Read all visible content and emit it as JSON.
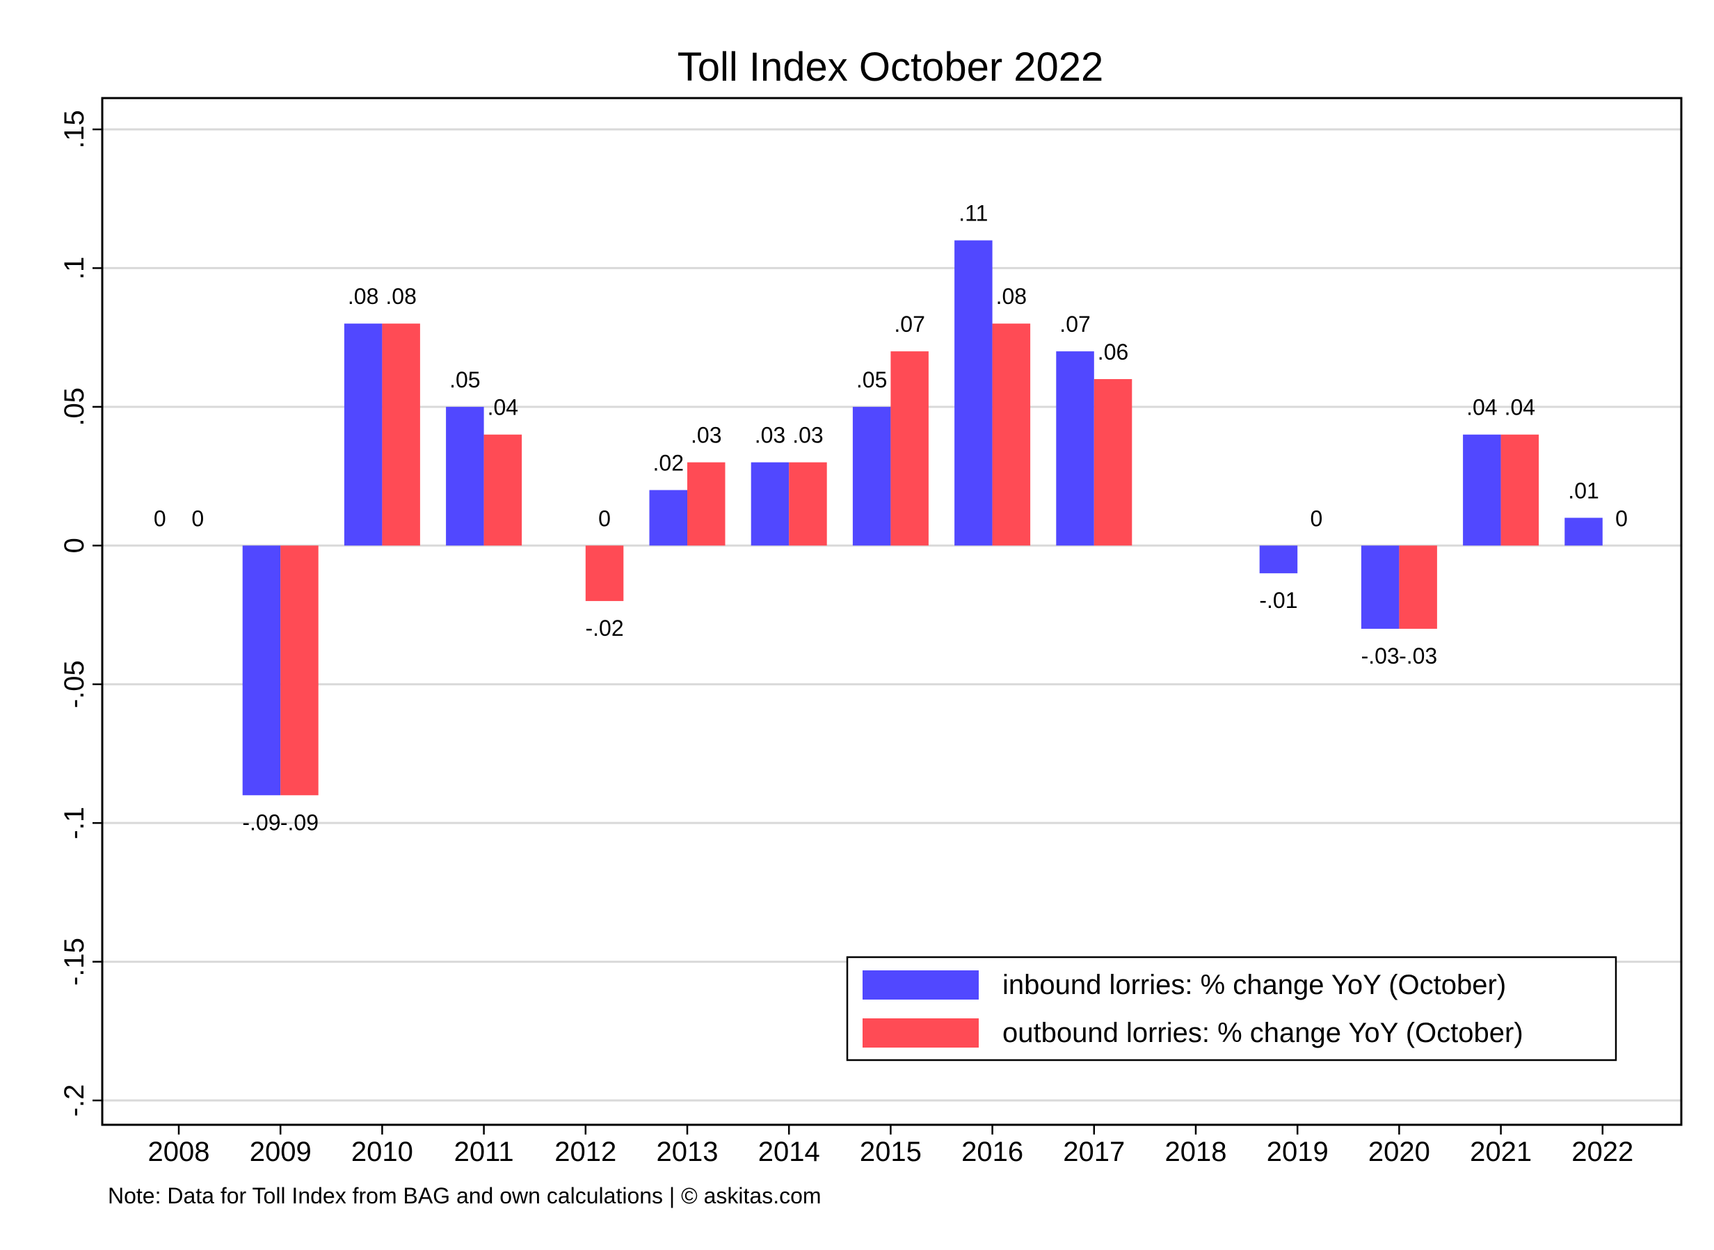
{
  "chart_data": {
    "type": "bar",
    "title": "Toll Index October 2022",
    "note": "Note: Data for Toll Index from BAG and own calculations | © askitas.com",
    "categories": [
      "2008",
      "2009",
      "2010",
      "2011",
      "2012",
      "2013",
      "2014",
      "2015",
      "2016",
      "2017",
      "2018",
      "2019",
      "2020",
      "2021",
      "2022"
    ],
    "series": [
      {
        "name": "inbound lorries: % change YoY (October)",
        "color": "#5148FF",
        "values": [
          0,
          -0.09,
          0.08,
          0.05,
          null,
          0.02,
          0.03,
          0.05,
          0.11,
          0.07,
          null,
          -0.01,
          -0.03,
          0.04,
          0.01
        ],
        "labels": [
          "0",
          "-.09",
          ".08",
          ".05",
          "",
          ".02",
          ".03",
          ".05",
          ".11",
          ".07",
          "",
          "-.01",
          "-.03",
          ".04",
          ".01"
        ]
      },
      {
        "name": "outbound lorries: % change YoY (October)",
        "color": "#FF4B55",
        "values": [
          0,
          -0.09,
          0.08,
          0.04,
          -0.02,
          0.03,
          0.03,
          0.07,
          0.08,
          0.06,
          null,
          0,
          -0.03,
          0.04,
          0
        ],
        "labels": [
          "0",
          "-.09",
          ".08",
          ".04",
          "0|-.02",
          ".03",
          ".03",
          ".07",
          ".08",
          ".06",
          "",
          "0",
          "-.03",
          ".04",
          "0"
        ]
      }
    ],
    "ylim": [
      -0.2,
      0.15
    ],
    "yticks": [
      -0.2,
      -0.15,
      -0.1,
      -0.05,
      0,
      0.05,
      0.1,
      0.15
    ],
    "ytick_labels": [
      "-.2",
      "-.15",
      "-.1",
      "-.05",
      "0",
      ".05",
      ".1",
      ".15"
    ],
    "grid": true,
    "legend_position": "bottom-right"
  }
}
